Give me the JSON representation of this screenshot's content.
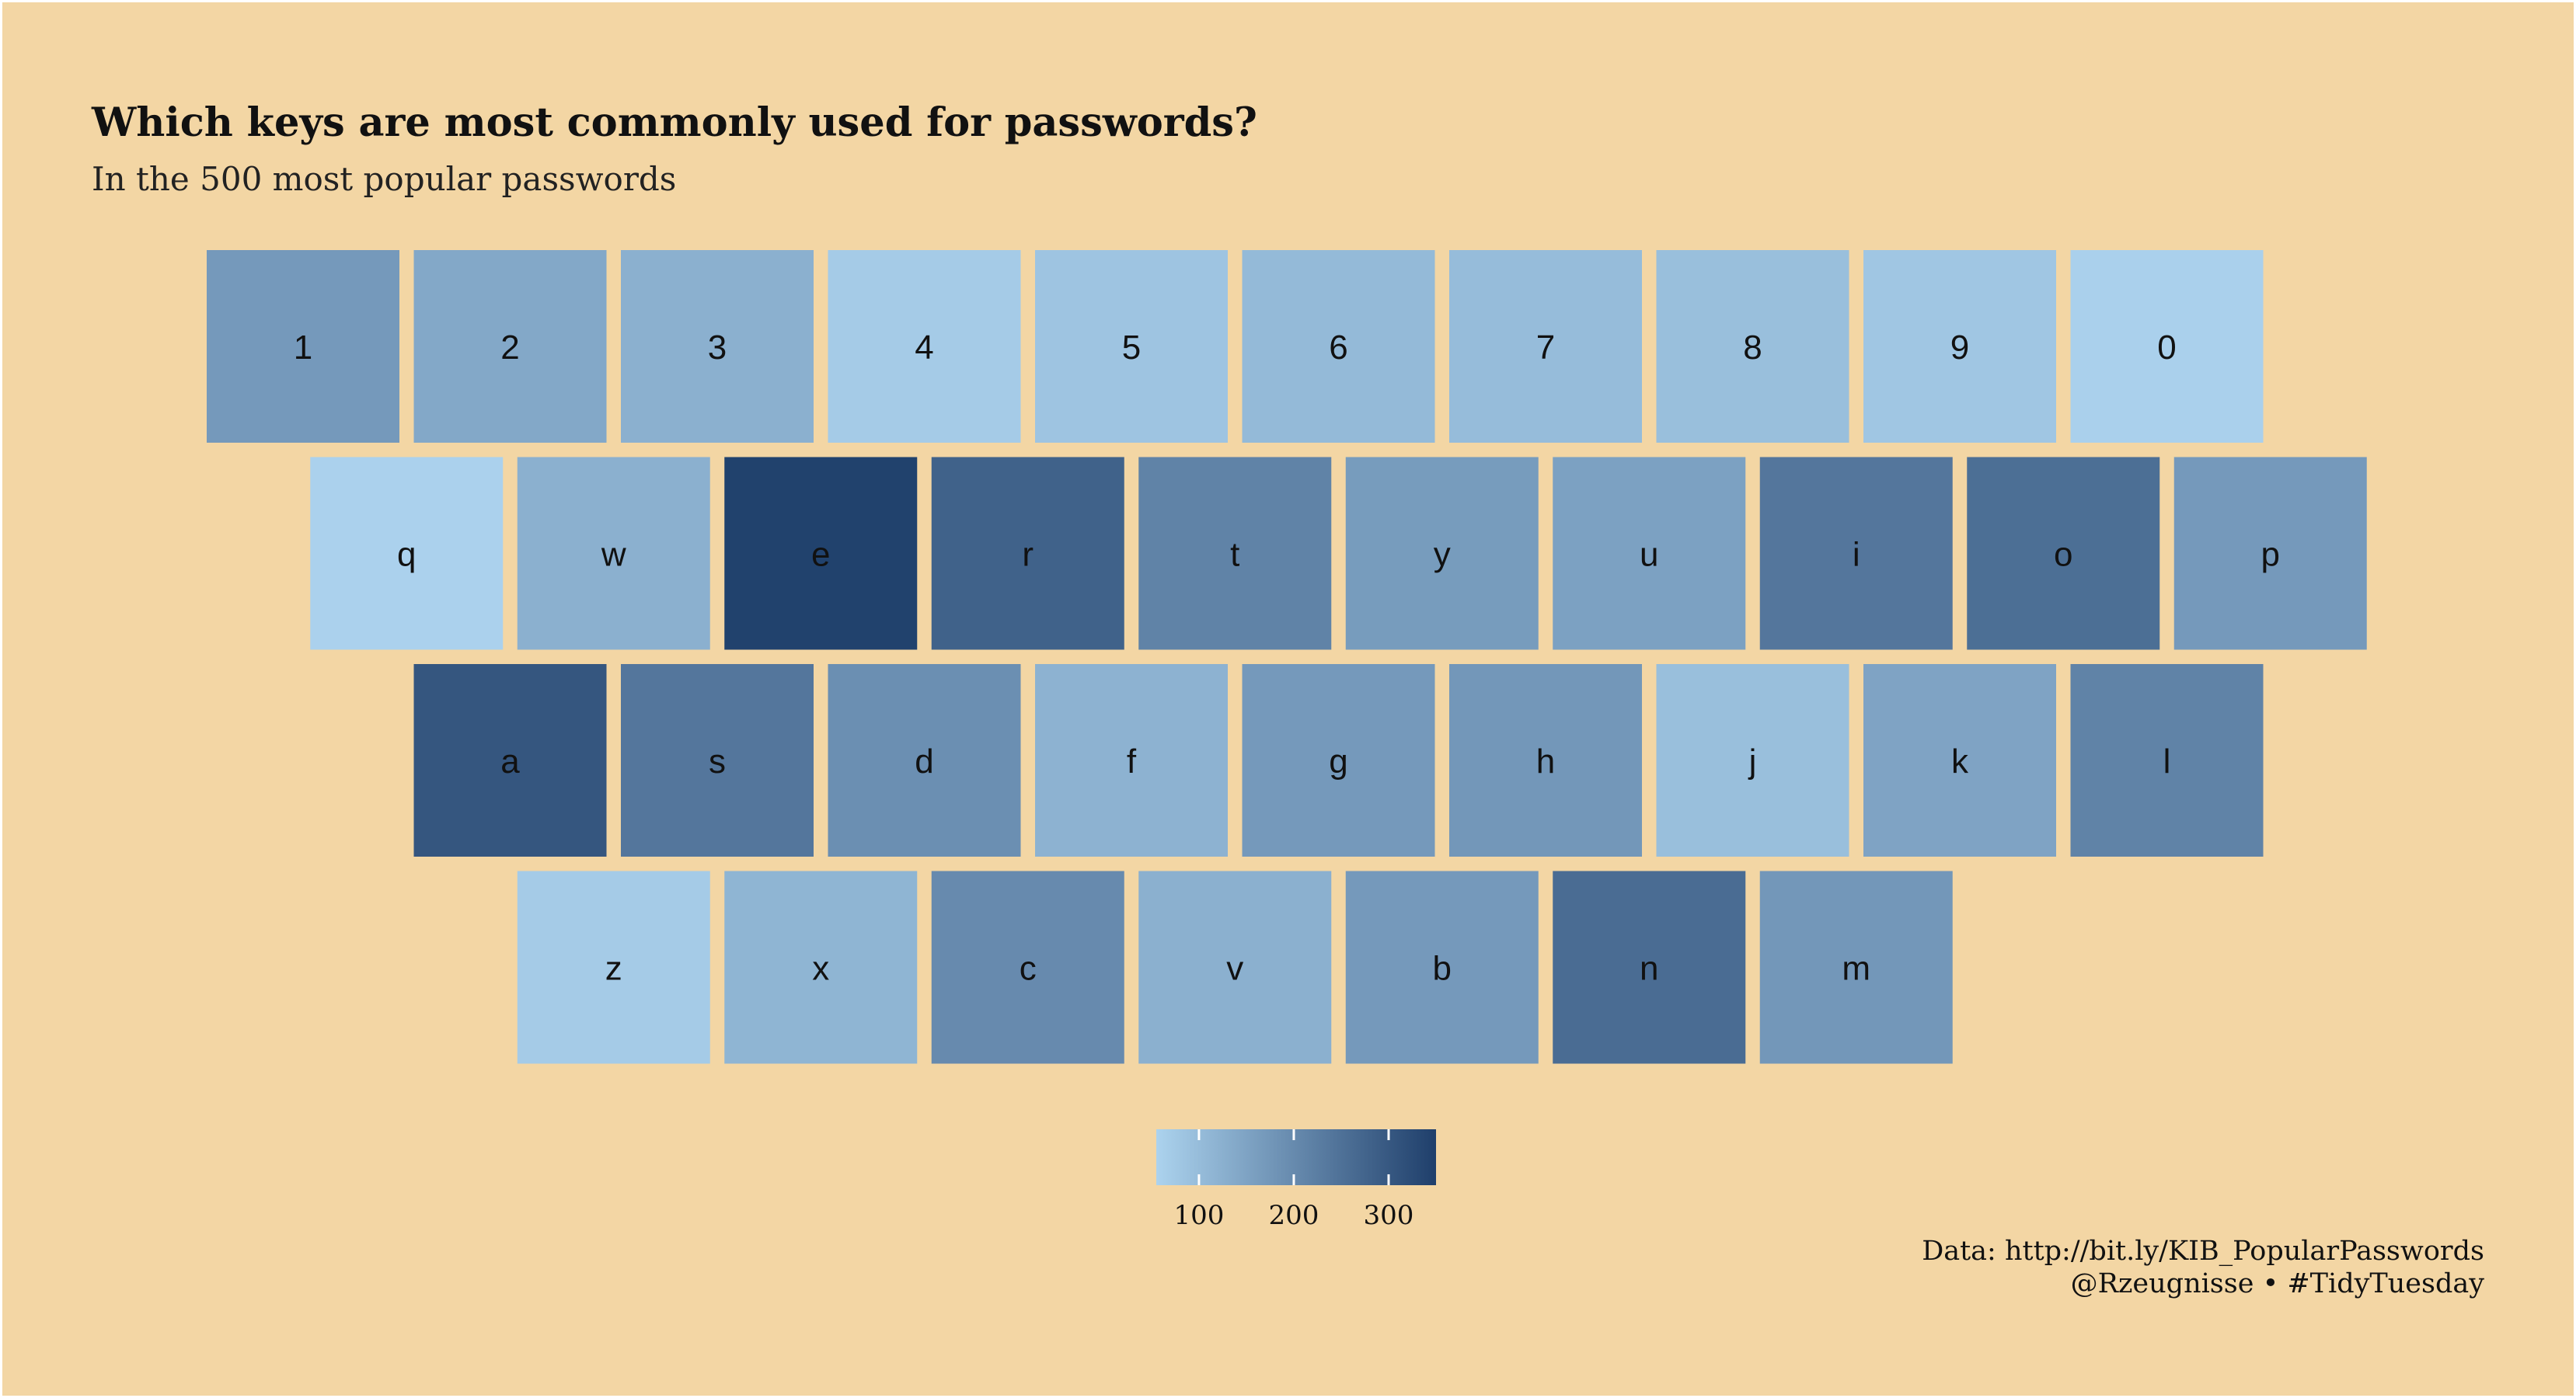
{
  "header": {
    "title": "Which keys are most commonly used for passwords?",
    "subtitle": "In the 500 most popular passwords"
  },
  "caption": {
    "line1": "Data: http://bit.ly/KIB_PopularPasswords",
    "line2": "@Rzeugnisse • #TidyTuesday"
  },
  "chart_data": {
    "type": "heatmap",
    "title": "Which keys are most commonly used for passwords?",
    "subtitle": "In the 500 most popular passwords",
    "color_scale": {
      "low_color": "#acd3ee",
      "high_color": "#1f3f6b",
      "domain": [
        55,
        350
      ],
      "legend_ticks": [
        100,
        200,
        300
      ],
      "legend_placement": "bottom"
    },
    "rows": [
      {
        "keys": [
          {
            "key": "1",
            "value": 170
          },
          {
            "key": "2",
            "value": 140
          },
          {
            "key": "3",
            "value": 125
          },
          {
            "key": "4",
            "value": 70
          },
          {
            "key": "5",
            "value": 85
          },
          {
            "key": "6",
            "value": 105
          },
          {
            "key": "7",
            "value": 100
          },
          {
            "key": "8",
            "value": 95
          },
          {
            "key": "9",
            "value": 80
          },
          {
            "key": "0",
            "value": 60
          }
        ]
      },
      {
        "keys": [
          {
            "key": "q",
            "value": 58
          },
          {
            "key": "w",
            "value": 125
          },
          {
            "key": "e",
            "value": 345
          },
          {
            "key": "r",
            "value": 280
          },
          {
            "key": "t",
            "value": 215
          },
          {
            "key": "y",
            "value": 165
          },
          {
            "key": "u",
            "value": 155
          },
          {
            "key": "i",
            "value": 240
          },
          {
            "key": "o",
            "value": 255
          },
          {
            "key": "p",
            "value": 170
          }
        ]
      },
      {
        "keys": [
          {
            "key": "a",
            "value": 305
          },
          {
            "key": "s",
            "value": 240
          },
          {
            "key": "d",
            "value": 190
          },
          {
            "key": "f",
            "value": 120
          },
          {
            "key": "g",
            "value": 170
          },
          {
            "key": "h",
            "value": 175
          },
          {
            "key": "j",
            "value": 95
          },
          {
            "key": "k",
            "value": 150
          },
          {
            "key": "l",
            "value": 215
          }
        ]
      },
      {
        "keys": [
          {
            "key": "z",
            "value": 70
          },
          {
            "key": "x",
            "value": 115
          },
          {
            "key": "c",
            "value": 200
          },
          {
            "key": "v",
            "value": 125
          },
          {
            "key": "b",
            "value": 170
          },
          {
            "key": "n",
            "value": 260
          },
          {
            "key": "m",
            "value": 175
          }
        ]
      }
    ]
  }
}
